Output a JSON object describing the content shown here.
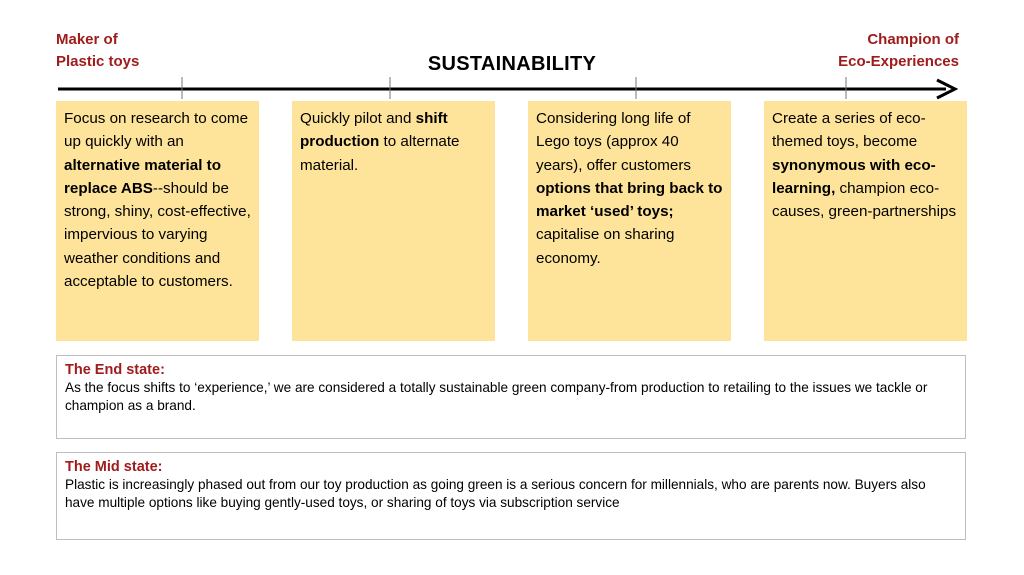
{
  "title": "SUSTAINABILITY",
  "left_end": {
    "line1": "Maker of",
    "line2": "Plastic toys"
  },
  "right_end": {
    "line1": "Champion of",
    "line2": "Eco-Experiences"
  },
  "colors": {
    "accent": "#a01c1c",
    "box_fill": "#fde49a",
    "state_border": "#bfbfbf"
  },
  "boxes": [
    [
      {
        "t": "Focus on research to come up quickly with an "
      },
      {
        "t": "alternative material to replace ABS",
        "b": true
      },
      {
        "t": "--should be strong, shiny, cost-effective, impervious to varying weather conditions and acceptable to customers."
      }
    ],
    [
      {
        "t": "Quickly pilot and "
      },
      {
        "t": "shift production",
        "b": true
      },
      {
        "t": " to alternate material."
      }
    ],
    [
      {
        "t": "Considering long life of Lego toys (approx 40 years), offer customers "
      },
      {
        "t": "options that bring back to market ‘used’ toys;",
        "b": true
      },
      {
        "t": " capitalise on sharing economy."
      }
    ],
    [
      {
        "t": "Create a series of eco-themed toys, become "
      },
      {
        "t": "synonymous with eco-learning,",
        "b": true
      },
      {
        "t": " champion eco-causes, green-partnerships"
      }
    ]
  ],
  "end_state": {
    "title": "The End state:",
    "text": "As the focus shifts to ‘experience,’ we are considered a totally sustainable green company-from production to retailing to the issues we tackle or champion as a brand."
  },
  "mid_state": {
    "title": "The Mid state:",
    "text": "Plastic is increasingly phased out from our toy production as going green is a serious concern for millennials, who are parents now. Buyers also have multiple options like buying gently-used toys, or sharing of toys via subscription service"
  }
}
